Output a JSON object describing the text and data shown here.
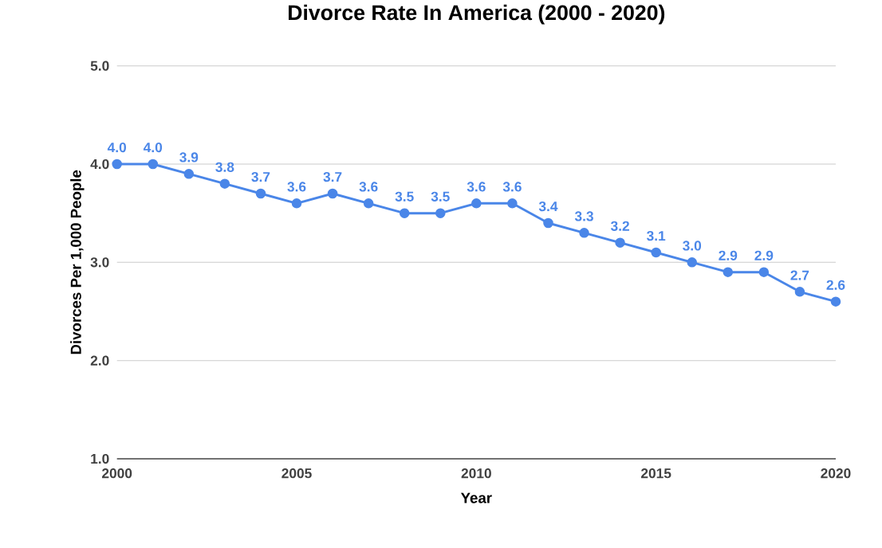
{
  "chart_data": {
    "type": "line",
    "title": "Divorce Rate In America (2000 - 2020)",
    "xlabel": "Year",
    "ylabel": "Divorces Per 1,000 People",
    "x": [
      2000,
      2001,
      2002,
      2003,
      2004,
      2005,
      2006,
      2007,
      2008,
      2009,
      2010,
      2011,
      2012,
      2013,
      2014,
      2015,
      2016,
      2017,
      2018,
      2019,
      2020
    ],
    "series": [
      {
        "color": "#4a86e8",
        "values": [
          4.0,
          4.0,
          3.9,
          3.8,
          3.7,
          3.6,
          3.7,
          3.6,
          3.5,
          3.5,
          3.6,
          3.6,
          3.4,
          3.3,
          3.2,
          3.1,
          3.0,
          2.9,
          2.9,
          2.7,
          2.6
        ],
        "value_labels": [
          "4.0",
          "4.0",
          "3.9",
          "3.8",
          "3.7",
          "3.6",
          "3.7",
          "3.6",
          "3.5",
          "3.5",
          "3.6",
          "3.6",
          "3.4",
          "3.3",
          "3.2",
          "3.1",
          "3.0",
          "2.9",
          "2.9",
          "2.7",
          "2.6"
        ]
      }
    ],
    "xlim": [
      2000,
      2020
    ],
    "xticks": [
      2000,
      2005,
      2010,
      2015,
      2020
    ],
    "ylim": [
      1,
      5
    ],
    "yticks": [
      {
        "value": 1,
        "label": "1.0"
      },
      {
        "value": 2,
        "label": "2.0"
      },
      {
        "value": 3,
        "label": "3.0"
      },
      {
        "value": 4,
        "label": "4.0"
      },
      {
        "value": 5,
        "label": "5.0"
      }
    ],
    "grid": "y",
    "marker": "circle",
    "line_style": "solid"
  }
}
